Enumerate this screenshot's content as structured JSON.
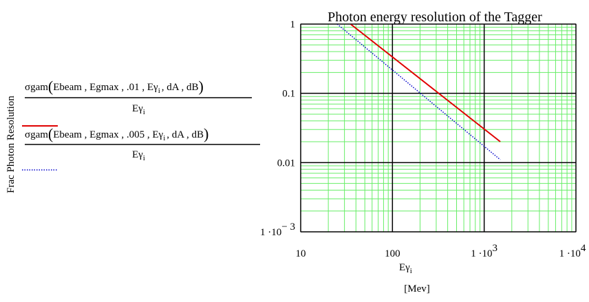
{
  "chart_data": {
    "type": "line",
    "title": "Photon energy resolution of the Tagger",
    "ylabel": "Frac Photon Resolution",
    "xlabel": {
      "base": "Eγ",
      "subscript": "i",
      "unit": "[Mev]"
    },
    "xscale": "log",
    "yscale": "log",
    "xlim": [
      10,
      10000
    ],
    "ylim": [
      0.001,
      1
    ],
    "grid": true,
    "xticks": [
      {
        "value": 10,
        "label": "10"
      },
      {
        "value": 100,
        "label": "100"
      },
      {
        "value": 1000,
        "base": "1 ·10",
        "exp": "3"
      },
      {
        "value": 10000,
        "base": "1 ·10",
        "exp": "4"
      }
    ],
    "yticks": [
      {
        "value": 1,
        "label": "1"
      },
      {
        "value": 0.1,
        "label": "0.1"
      },
      {
        "value": 0.01,
        "label": "0.01"
      },
      {
        "value": 0.001,
        "base": "1 ·10",
        "exp": "− 3"
      }
    ],
    "series": [
      {
        "legend": {
          "func": "σgam",
          "args_before": "Ebeam , Egmax , .01 , E",
          "sub_arg": "γ",
          "sub_index": "i",
          "args_after": ", dA , dB",
          "denominator": "Eγ",
          "denominator_sub": "i"
        },
        "color": "#e00000",
        "style": "solid",
        "x": [
          35,
          1500
        ],
        "y": [
          1.0,
          0.02
        ]
      },
      {
        "legend": {
          "func": "σgam",
          "args_before": "Ebeam , Egmax , .005 , E",
          "sub_arg": "γ",
          "sub_index": "i",
          "args_after": ", dA , dB",
          "denominator": "Eγ",
          "denominator_sub": "i"
        },
        "color": "#0000cc",
        "style": "dotted",
        "x": [
          25,
          1500
        ],
        "y": [
          1.0,
          0.011
        ]
      }
    ]
  },
  "colors": {
    "grid_minor": "#66ee66",
    "grid_major": "#000000"
  }
}
